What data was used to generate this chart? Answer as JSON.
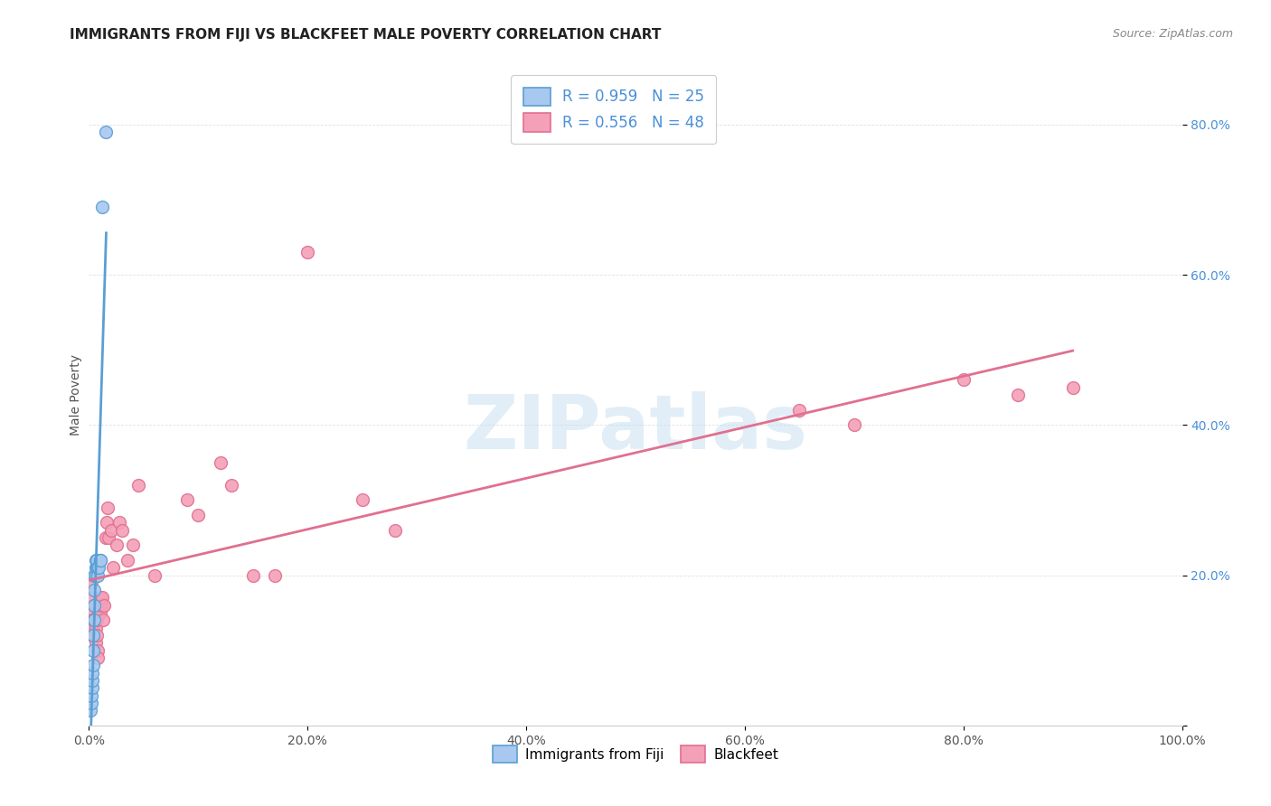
{
  "title": "IMMIGRANTS FROM FIJI VS BLACKFEET MALE POVERTY CORRELATION CHART",
  "source": "Source: ZipAtlas.com",
  "ylabel": "Male Poverty",
  "watermark": "ZIPatlas",
  "fiji_R": 0.959,
  "fiji_N": 25,
  "blackfeet_R": 0.556,
  "blackfeet_N": 48,
  "fiji_color": "#a8c8f0",
  "fiji_line_color": "#5a9fd4",
  "blackfeet_color": "#f4a0b8",
  "blackfeet_line_color": "#e07090",
  "background_color": "#ffffff",
  "grid_color": "#e0e0e0",
  "xlim": [
    0.0,
    1.0
  ],
  "ylim": [
    0.0,
    0.88
  ],
  "yticks": [
    0.0,
    0.2,
    0.4,
    0.6,
    0.8
  ],
  "ytick_labels": [
    "",
    "20.0%",
    "40.0%",
    "60.0%",
    "80.0%"
  ],
  "xticks": [
    0.0,
    0.2,
    0.4,
    0.6,
    0.8,
    1.0
  ],
  "xtick_labels": [
    "0.0%",
    "20.0%",
    "40.0%",
    "60.0%",
    "80.0%",
    "100.0%"
  ],
  "fiji_x": [
    0.001,
    0.002,
    0.002,
    0.003,
    0.003,
    0.003,
    0.004,
    0.004,
    0.004,
    0.005,
    0.005,
    0.005,
    0.005,
    0.006,
    0.006,
    0.006,
    0.007,
    0.007,
    0.008,
    0.008,
    0.009,
    0.01,
    0.01,
    0.012,
    0.015
  ],
  "fiji_y": [
    0.02,
    0.03,
    0.04,
    0.05,
    0.06,
    0.07,
    0.08,
    0.1,
    0.12,
    0.14,
    0.16,
    0.18,
    0.2,
    0.21,
    0.22,
    0.2,
    0.21,
    0.22,
    0.2,
    0.21,
    0.21,
    0.22,
    0.22,
    0.69,
    0.79
  ],
  "blackfeet_x": [
    0.001,
    0.002,
    0.002,
    0.003,
    0.003,
    0.004,
    0.005,
    0.005,
    0.006,
    0.006,
    0.007,
    0.007,
    0.008,
    0.008,
    0.009,
    0.01,
    0.01,
    0.011,
    0.012,
    0.013,
    0.014,
    0.015,
    0.016,
    0.017,
    0.018,
    0.02,
    0.022,
    0.025,
    0.028,
    0.03,
    0.035,
    0.04,
    0.045,
    0.06,
    0.09,
    0.1,
    0.12,
    0.13,
    0.15,
    0.17,
    0.2,
    0.25,
    0.28,
    0.65,
    0.7,
    0.8,
    0.85,
    0.9
  ],
  "blackfeet_y": [
    0.17,
    0.19,
    0.15,
    0.14,
    0.12,
    0.13,
    0.14,
    0.16,
    0.13,
    0.11,
    0.14,
    0.12,
    0.1,
    0.09,
    0.15,
    0.17,
    0.15,
    0.16,
    0.17,
    0.14,
    0.16,
    0.25,
    0.27,
    0.29,
    0.25,
    0.26,
    0.21,
    0.24,
    0.27,
    0.26,
    0.22,
    0.24,
    0.32,
    0.2,
    0.3,
    0.28,
    0.35,
    0.32,
    0.2,
    0.2,
    0.63,
    0.3,
    0.26,
    0.42,
    0.4,
    0.46,
    0.44,
    0.45
  ],
  "legend_fiji_label": "Immigrants from Fiji",
  "legend_blackfeet_label": "Blackfeet",
  "title_fontsize": 11,
  "axis_label_fontsize": 10,
  "tick_fontsize": 10,
  "legend_fontsize": 12,
  "source_fontsize": 9,
  "watermark_fontsize": 60,
  "marker_size": 100,
  "line_width": 2.0
}
